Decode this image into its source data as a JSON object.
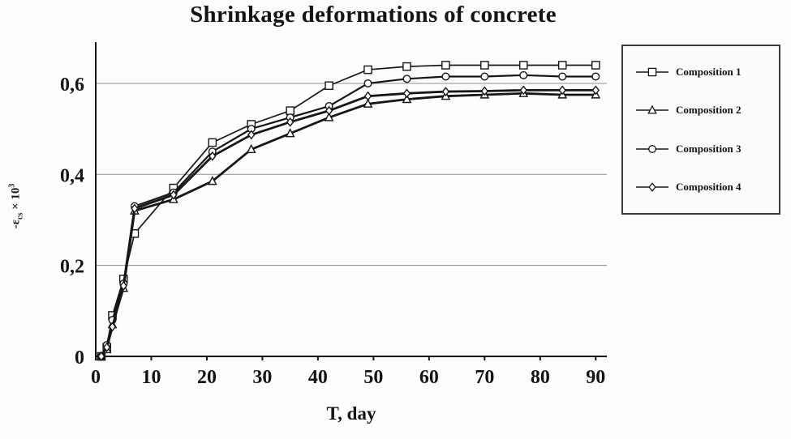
{
  "chart_data": {
    "type": "line",
    "title": "Shrinkage deformations of concrete",
    "xlabel": "T, day",
    "ylabel": "-εcs × 10³",
    "ylabel_parts": {
      "prefix": "-ε",
      "sub": "cs",
      "times": " × 10",
      "sup": "3"
    },
    "xlim": [
      0,
      92
    ],
    "ylim": [
      0,
      0.68
    ],
    "xticks": [
      0,
      10,
      20,
      30,
      40,
      50,
      60,
      70,
      80,
      90
    ],
    "yticks": [
      {
        "v": 0,
        "label": "0"
      },
      {
        "v": 0.2,
        "label": "0,2"
      },
      {
        "v": 0.4,
        "label": "0,4"
      },
      {
        "v": 0.6,
        "label": "0,6"
      }
    ],
    "gridlines": [
      0.2,
      0.4,
      0.6
    ],
    "grid": "horizontal-only",
    "legend_position": "outside-right",
    "x": [
      1,
      2,
      3,
      5,
      7,
      14,
      21,
      28,
      35,
      42,
      49,
      56,
      63,
      70,
      77,
      84,
      90
    ],
    "series": [
      {
        "name": "Composition 1",
        "marker": "square",
        "color": "#161616",
        "values": [
          0,
          0.02,
          0.09,
          0.17,
          0.27,
          0.37,
          0.47,
          0.51,
          0.54,
          0.595,
          0.63,
          0.637,
          0.64,
          0.64,
          0.64,
          0.64,
          0.64
        ]
      },
      {
        "name": "Composition 2",
        "marker": "triangle",
        "color": "#161616",
        "values": [
          0,
          0.015,
          0.07,
          0.15,
          0.32,
          0.345,
          0.385,
          0.455,
          0.49,
          0.525,
          0.555,
          0.565,
          0.572,
          0.575,
          0.578,
          0.575,
          0.575
        ]
      },
      {
        "name": "Composition 3",
        "marker": "circle",
        "color": "#161616",
        "values": [
          0,
          0.025,
          0.08,
          0.16,
          0.33,
          0.36,
          0.45,
          0.5,
          0.525,
          0.55,
          0.6,
          0.61,
          0.615,
          0.615,
          0.618,
          0.615,
          0.615
        ]
      },
      {
        "name": "Composition 4",
        "marker": "diamond",
        "color": "#161616",
        "values": [
          0,
          0.02,
          0.065,
          0.155,
          0.325,
          0.355,
          0.44,
          0.487,
          0.515,
          0.54,
          0.572,
          0.578,
          0.582,
          0.583,
          0.585,
          0.585,
          0.585
        ]
      }
    ]
  }
}
